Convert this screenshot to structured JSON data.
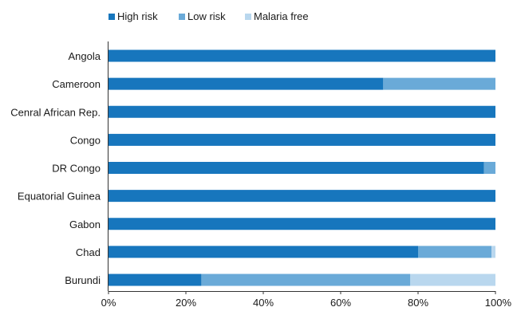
{
  "chart_data": {
    "type": "bar",
    "orientation": "horizontal",
    "stacked": true,
    "title": "",
    "xlabel": "",
    "ylabel": "",
    "xlim": [
      0,
      100
    ],
    "x_ticks": [
      "0%",
      "20%",
      "40%",
      "60%",
      "80%",
      "100%"
    ],
    "legend_position": "top-left",
    "grid": false,
    "categories": [
      "Angola",
      "Cameroon",
      "Cenral African Rep.",
      "Congo",
      "DR Congo",
      "Equatorial Guinea",
      "Gabon",
      "Chad",
      "Burundi"
    ],
    "series": [
      {
        "name": "High risk",
        "color": "#1776bd",
        "values": [
          100,
          71,
          100,
          100,
          97,
          100,
          100,
          80,
          24
        ]
      },
      {
        "name": "Low risk",
        "color": "#6aaad8",
        "values": [
          0,
          29,
          0,
          0,
          3,
          0,
          0,
          19,
          54
        ]
      },
      {
        "name": "Malaria free",
        "color": "#b9d7ee",
        "values": [
          0,
          0,
          0,
          0,
          0,
          0,
          0,
          1,
          22
        ]
      }
    ]
  }
}
